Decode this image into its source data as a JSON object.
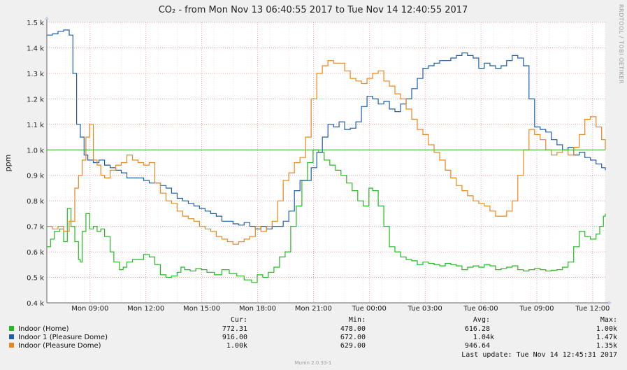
{
  "chart_data": {
    "type": "line",
    "title": "CO₂ - from Mon Nov 13 06:40:55 2017 to Tue Nov 14 12:40:55 2017",
    "ylabel": "ppm",
    "side_label": "RRDTOOL / TOBI OETIKER",
    "ylim": [
      400,
      1500
    ],
    "xlim": [
      0,
      30
    ],
    "y_ticks": [
      {
        "value": 400,
        "label": "0.4 k"
      },
      {
        "value": 500,
        "label": "0.5 k"
      },
      {
        "value": 600,
        "label": "0.6 k"
      },
      {
        "value": 700,
        "label": "0.7 k"
      },
      {
        "value": 800,
        "label": "0.8 k"
      },
      {
        "value": 900,
        "label": "0.9 k"
      },
      {
        "value": 1000,
        "label": "1.0 k"
      },
      {
        "value": 1100,
        "label": "1.1 k"
      },
      {
        "value": 1200,
        "label": "1.2 k"
      },
      {
        "value": 1300,
        "label": "1.3 k"
      },
      {
        "value": 1400,
        "label": "1.4 k"
      },
      {
        "value": 1500,
        "label": "1.5 k"
      }
    ],
    "x_ticks": [
      {
        "value": 2.32,
        "label": "Mon 09:00"
      },
      {
        "value": 5.32,
        "label": "Mon 12:00"
      },
      {
        "value": 8.32,
        "label": "Mon 15:00"
      },
      {
        "value": 11.32,
        "label": "Mon 18:00"
      },
      {
        "value": 14.32,
        "label": "Mon 21:00"
      },
      {
        "value": 17.32,
        "label": "Tue 00:00"
      },
      {
        "value": 20.32,
        "label": "Tue 03:00"
      },
      {
        "value": 23.32,
        "label": "Tue 06:00"
      },
      {
        "value": 26.32,
        "label": "Tue 09:00"
      },
      {
        "value": 29.32,
        "label": "Tue 12:00"
      }
    ],
    "threshold": {
      "value": 1000,
      "color": "#22bb22"
    },
    "grid": true,
    "series": [
      {
        "name": "Indoor (Home)",
        "color": "#22bb22",
        "x": [
          0,
          0.2,
          0.4,
          0.7,
          0.9,
          1.1,
          1.3,
          1.5,
          1.7,
          1.8,
          1.9,
          2.1,
          2.3,
          2.5,
          2.7,
          2.9,
          3.1,
          3.4,
          3.6,
          3.9,
          4.1,
          4.3,
          4.6,
          4.9,
          5.2,
          5.5,
          5.8,
          6.1,
          6.4,
          6.7,
          7.0,
          7.2,
          7.4,
          7.7,
          8.0,
          8.3,
          8.6,
          9.0,
          9.4,
          9.8,
          10.2,
          10.6,
          11.0,
          11.3,
          11.6,
          11.9,
          12.2,
          12.5,
          12.8,
          13.1,
          13.4,
          13.7,
          14.0,
          14.3,
          14.6,
          14.9,
          15.2,
          15.5,
          15.8,
          16.1,
          16.4,
          16.7,
          17.0,
          17.3,
          17.5,
          17.8,
          18.1,
          18.4,
          18.7,
          19.0,
          19.3,
          19.6,
          19.9,
          20.2,
          20.5,
          20.8,
          21.1,
          21.4,
          21.7,
          22.0,
          22.3,
          22.6,
          22.9,
          23.2,
          23.5,
          23.8,
          24.1,
          24.4,
          24.7,
          25.0,
          25.3,
          25.6,
          25.9,
          26.2,
          26.5,
          26.8,
          27.1,
          27.4,
          27.7,
          28.0,
          28.3,
          28.6,
          28.9,
          29.2,
          29.5,
          29.7,
          29.9,
          30.0
        ],
        "y": [
          620,
          650,
          680,
          690,
          640,
          770,
          700,
          640,
          570,
          560,
          680,
          750,
          690,
          700,
          680,
          690,
          660,
          600,
          560,
          530,
          540,
          560,
          570,
          570,
          590,
          580,
          550,
          510,
          500,
          505,
          520,
          540,
          530,
          525,
          535,
          530,
          520,
          510,
          530,
          515,
          505,
          490,
          480,
          510,
          500,
          520,
          540,
          580,
          600,
          700,
          780,
          880,
          950,
          1000,
          990,
          960,
          940,
          920,
          900,
          870,
          840,
          800,
          780,
          850,
          840,
          780,
          700,
          620,
          600,
          580,
          570,
          565,
          550,
          560,
          555,
          550,
          545,
          555,
          550,
          545,
          530,
          540,
          545,
          540,
          550,
          545,
          530,
          535,
          540,
          545,
          530,
          525,
          530,
          535,
          530,
          525,
          528,
          530,
          540,
          560,
          620,
          680,
          660,
          650,
          670,
          700,
          740,
          750
        ]
      },
      {
        "name": "Indoor 1 (Pleasure Dome)",
        "color": "#1d5da8",
        "x": [
          0,
          0.3,
          0.6,
          0.9,
          1.2,
          1.4,
          1.6,
          1.8,
          2.0,
          2.2,
          2.5,
          2.8,
          3.1,
          3.4,
          3.7,
          4.0,
          4.3,
          4.6,
          4.9,
          5.2,
          5.5,
          5.8,
          6.1,
          6.4,
          6.7,
          7.0,
          7.3,
          7.6,
          7.9,
          8.2,
          8.5,
          8.8,
          9.1,
          9.4,
          9.7,
          10.0,
          10.3,
          10.6,
          10.9,
          11.2,
          11.5,
          11.8,
          12.1,
          12.4,
          12.7,
          13.0,
          13.3,
          13.6,
          13.9,
          14.2,
          14.5,
          14.8,
          15.1,
          15.4,
          15.7,
          16.0,
          16.3,
          16.6,
          16.9,
          17.2,
          17.5,
          17.8,
          18.1,
          18.4,
          18.7,
          19.0,
          19.3,
          19.6,
          19.9,
          20.2,
          20.5,
          20.8,
          21.1,
          21.4,
          21.7,
          22.0,
          22.3,
          22.6,
          22.9,
          23.2,
          23.5,
          23.8,
          24.1,
          24.4,
          24.7,
          25.0,
          25.3,
          25.6,
          25.9,
          26.2,
          26.5,
          26.8,
          27.1,
          27.4,
          27.7,
          28.0,
          28.3,
          28.6,
          28.9,
          29.2,
          29.5,
          29.8,
          30.0
        ],
        "y": [
          1450,
          1455,
          1465,
          1470,
          1450,
          1300,
          1100,
          1050,
          980,
          960,
          950,
          960,
          940,
          930,
          920,
          910,
          890,
          890,
          890,
          880,
          870,
          870,
          860,
          850,
          830,
          810,
          800,
          790,
          780,
          770,
          760,
          750,
          740,
          720,
          720,
          710,
          705,
          715,
          700,
          690,
          700,
          690,
          700,
          700,
          720,
          760,
          840,
          880,
          880,
          930,
          990,
          1050,
          1100,
          1090,
          1110,
          1080,
          1085,
          1110,
          1170,
          1210,
          1200,
          1180,
          1190,
          1160,
          1150,
          1180,
          1200,
          1240,
          1280,
          1320,
          1330,
          1340,
          1350,
          1350,
          1360,
          1370,
          1380,
          1370,
          1360,
          1320,
          1340,
          1330,
          1320,
          1330,
          1350,
          1370,
          1360,
          1330,
          1200,
          1090,
          1080,
          1070,
          1040,
          1020,
          1000,
          1010,
          980,
          990,
          970,
          960,
          945,
          930,
          920
        ]
      },
      {
        "name": "Indoor (Pleasure Dome)",
        "color": "#e8871e",
        "x": [
          0,
          0.3,
          0.6,
          0.9,
          1.2,
          1.5,
          1.7,
          1.9,
          2.1,
          2.3,
          2.5,
          2.7,
          2.9,
          3.1,
          3.4,
          3.7,
          4.0,
          4.3,
          4.6,
          4.9,
          5.2,
          5.5,
          5.8,
          6.1,
          6.4,
          6.7,
          7.0,
          7.3,
          7.6,
          7.9,
          8.2,
          8.5,
          8.8,
          9.1,
          9.4,
          9.7,
          10.0,
          10.3,
          10.6,
          10.9,
          11.2,
          11.5,
          11.8,
          12.1,
          12.4,
          12.7,
          13.0,
          13.3,
          13.6,
          13.9,
          14.2,
          14.5,
          14.8,
          15.1,
          15.4,
          15.7,
          16.0,
          16.3,
          16.6,
          16.9,
          17.2,
          17.5,
          17.8,
          18.1,
          18.4,
          18.7,
          19.0,
          19.3,
          19.6,
          19.9,
          20.2,
          20.5,
          20.8,
          21.1,
          21.4,
          21.7,
          22.0,
          22.3,
          22.6,
          22.9,
          23.2,
          23.5,
          23.8,
          24.1,
          24.4,
          24.7,
          25.0,
          25.3,
          25.6,
          25.9,
          26.2,
          26.5,
          26.8,
          27.1,
          27.4,
          27.7,
          28.0,
          28.3,
          28.6,
          28.9,
          29.2,
          29.5,
          29.8,
          30.0
        ],
        "y": [
          700,
          690,
          700,
          680,
          720,
          850,
          900,
          960,
          1050,
          1100,
          960,
          940,
          900,
          890,
          920,
          940,
          950,
          980,
          960,
          950,
          940,
          950,
          870,
          830,
          800,
          790,
          760,
          740,
          730,
          720,
          700,
          690,
          680,
          660,
          650,
          640,
          630,
          640,
          650,
          660,
          700,
          680,
          700,
          720,
          800,
          880,
          910,
          950,
          970,
          1050,
          1200,
          1300,
          1330,
          1350,
          1340,
          1340,
          1310,
          1280,
          1270,
          1260,
          1280,
          1300,
          1310,
          1270,
          1250,
          1220,
          1200,
          1160,
          1120,
          1080,
          1060,
          1020,
          990,
          960,
          920,
          890,
          860,
          840,
          820,
          800,
          790,
          780,
          760,
          740,
          740,
          760,
          800,
          900,
          1000,
          1080,
          1060,
          1040,
          1000,
          980,
          990,
          1000,
          980,
          1010,
          1060,
          1120,
          1130,
          1090,
          1040,
          1000
        ]
      }
    ]
  },
  "legend_table": {
    "headers": {
      "cur": "Cur:",
      "min": "Min:",
      "avg": "Avg:",
      "max": "Max:"
    },
    "rows": [
      {
        "name": "Indoor (Home)",
        "color": "#22bb22",
        "cur": "772.31",
        "min": "478.00",
        "avg": "616.28",
        "max": "1.00k"
      },
      {
        "name": "Indoor 1 (Pleasure Dome)",
        "color": "#1d5da8",
        "cur": "916.00",
        "min": "672.00",
        "avg": "1.04k",
        "max": "1.47k"
      },
      {
        "name": "Indoor (Pleasure Dome)",
        "color": "#e8871e",
        "cur": "1.00k",
        "min": "629.00",
        "avg": "946.64",
        "max": "1.35k"
      }
    ],
    "last_update": "Last update:  Tue Nov 14 12:45:31 2017"
  },
  "footer": "Munin 2.0.33-1"
}
